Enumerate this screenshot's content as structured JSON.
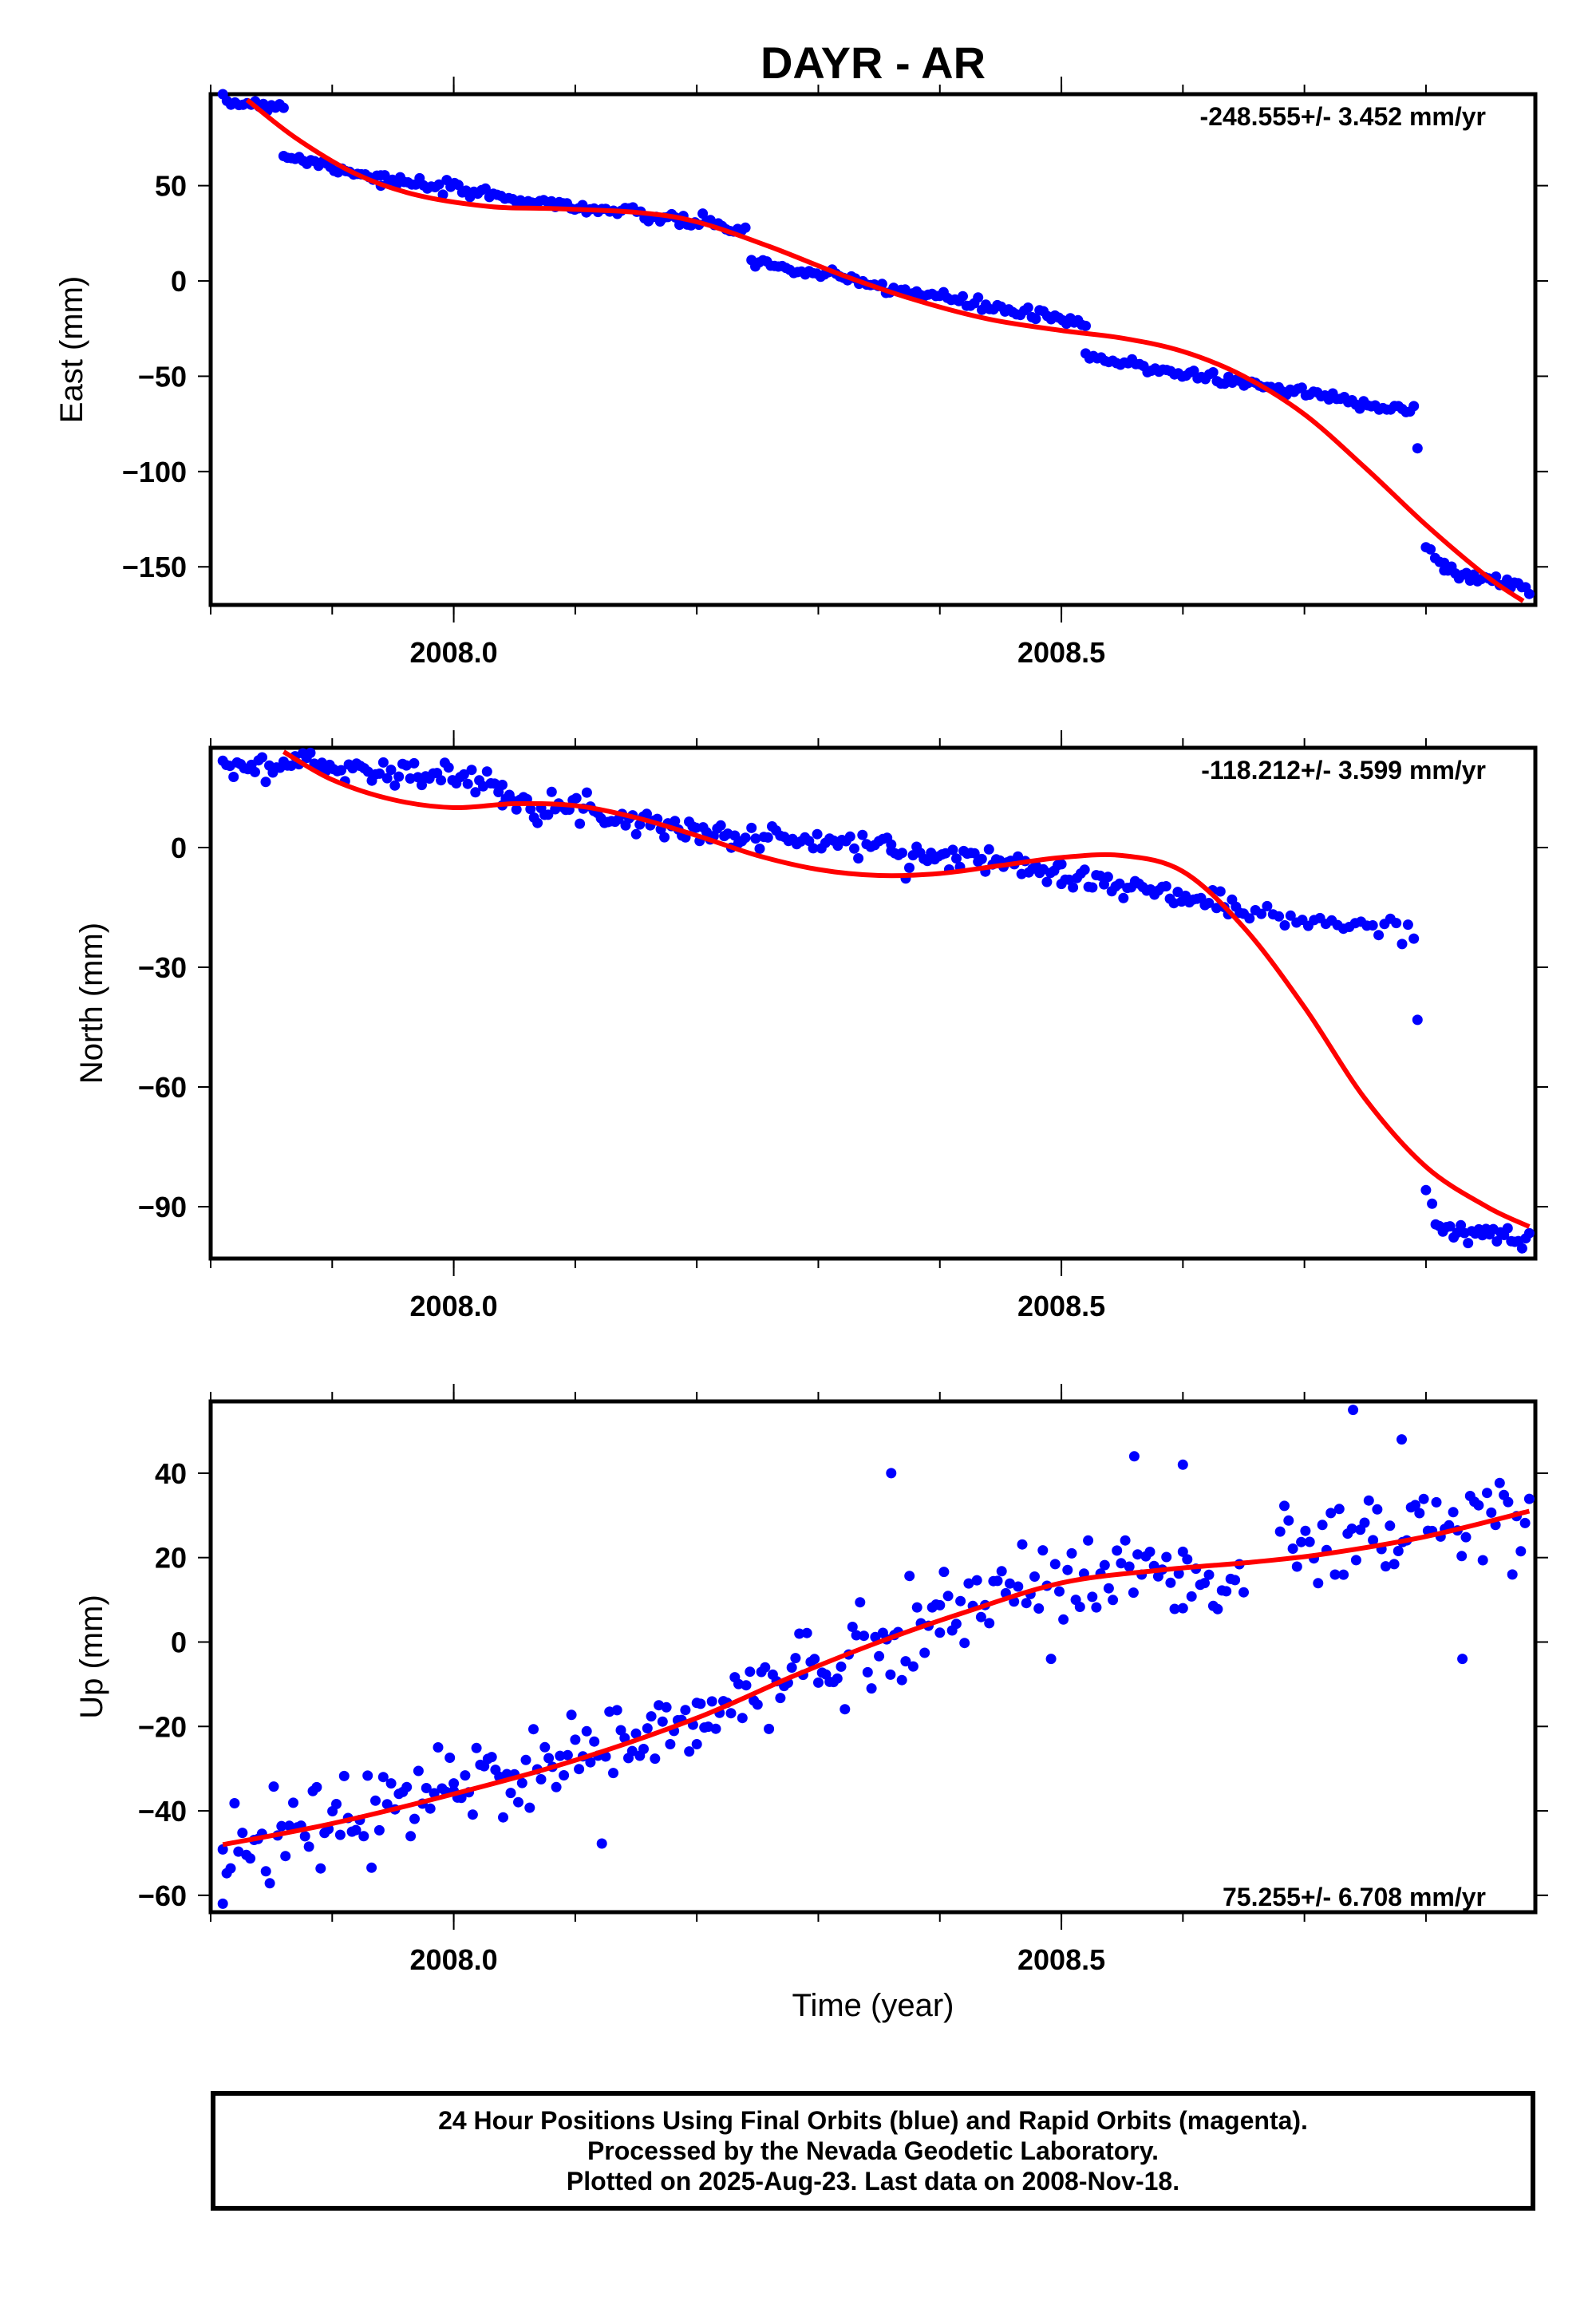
{
  "title": "DAYR - AR",
  "footer": {
    "line1": "24 Hour Positions Using Final Orbits (blue) and Rapid Orbits (magenta).",
    "line2": "Processed by the Nevada Geodetic Laboratory.",
    "line3": "Plotted on 2025-Aug-23. Last data on 2008-Nov-18."
  },
  "colors": {
    "final_orbits": "#0000ff",
    "fit": "#ff0000"
  },
  "chart_data": [
    {
      "type": "scatter",
      "id": "east",
      "title": "DAYR - AR",
      "xlabel": "",
      "ylabel": "East (mm)",
      "xlim": [
        2007.8,
        2008.89
      ],
      "ylim": [
        -170,
        98
      ],
      "xticks": [
        2008.0,
        2008.5
      ],
      "xtick_labels": [
        "2008.0",
        "2008.5"
      ],
      "yticks": [
        50,
        0,
        -50,
        -100,
        -150
      ],
      "ytick_labels": [
        "50",
        "0",
        "−50",
        "−100",
        "−150"
      ],
      "rate_text": "-248.555+/- 3.452 mm/yr",
      "rate_position": "top-right",
      "segments": [
        {
          "x0": 2007.81,
          "x1": 2007.86,
          "y0": 94,
          "y1": 92,
          "n": 16
        },
        {
          "x0": 2007.86,
          "x1": 2007.94,
          "y0": 66,
          "y1": 54,
          "n": 26
        },
        {
          "x0": 2007.94,
          "x1": 2008.24,
          "y0": 53,
          "y1": 27,
          "n": 95
        },
        {
          "x0": 2008.245,
          "x1": 2008.52,
          "y0": 10,
          "y1": -23,
          "n": 88
        },
        {
          "x0": 2008.52,
          "x1": 2008.79,
          "y0": -40,
          "y1": -68,
          "n": 86
        },
        {
          "x0": 2008.793,
          "x1": 2008.8,
          "y0": -88,
          "y1": -88,
          "n": 1
        },
        {
          "x0": 2008.8,
          "x1": 2008.815,
          "y0": -140,
          "y1": -150,
          "n": 5
        },
        {
          "x0": 2008.815,
          "x1": 2008.885,
          "y0": -152,
          "y1": -161,
          "n": 24
        }
      ],
      "scatter_noise": 1.6,
      "fit_curve": {
        "x": [
          2007.83,
          2007.87,
          2007.92,
          2007.97,
          2008.03,
          2008.08,
          2008.15,
          2008.2,
          2008.26,
          2008.32,
          2008.38,
          2008.44,
          2008.5,
          2008.55,
          2008.6,
          2008.65,
          2008.7,
          2008.75,
          2008.8,
          2008.85,
          2008.88
        ],
        "y": [
          95,
          75,
          56,
          45,
          39,
          38,
          36,
          31,
          18,
          3,
          -10,
          -20,
          -26,
          -30,
          -37,
          -50,
          -70,
          -98,
          -128,
          -155,
          -168
        ]
      }
    },
    {
      "type": "scatter",
      "id": "north",
      "xlabel": "",
      "ylabel": "North (mm)",
      "xlim": [
        2007.8,
        2008.89
      ],
      "ylim": [
        -103,
        25
      ],
      "xticks": [
        2008.0,
        2008.5
      ],
      "xtick_labels": [
        "2008.0",
        "2008.5"
      ],
      "yticks": [
        0,
        -30,
        -60,
        -90
      ],
      "ytick_labels": [
        "0",
        "−30",
        "−60",
        "−90"
      ],
      "rate_text": "-118.212+/- 3.599 mm/yr",
      "rate_position": "top-right",
      "segments": [
        {
          "x0": 2007.81,
          "x1": 2007.86,
          "y0": 20,
          "y1": 20,
          "n": 18
        },
        {
          "x0": 2007.86,
          "x1": 2008.04,
          "y0": 22,
          "y1": 16,
          "n": 58
        },
        {
          "x0": 2008.04,
          "x1": 2008.24,
          "y0": 13,
          "y1": 2,
          "n": 70
        },
        {
          "x0": 2008.245,
          "x1": 2008.36,
          "y0": 3,
          "y1": 0,
          "n": 35
        },
        {
          "x0": 2008.36,
          "x1": 2008.5,
          "y0": -1,
          "y1": -5,
          "n": 48
        },
        {
          "x0": 2008.5,
          "x1": 2008.65,
          "y0": -7,
          "y1": -15,
          "n": 48
        },
        {
          "x0": 2008.65,
          "x1": 2008.79,
          "y0": -17,
          "y1": -21,
          "n": 30
        },
        {
          "x0": 2008.793,
          "x1": 2008.8,
          "y0": -41,
          "y1": -41,
          "n": 1
        },
        {
          "x0": 2008.8,
          "x1": 2008.803,
          "y0": -86,
          "y1": -86,
          "n": 1
        },
        {
          "x0": 2008.805,
          "x1": 2008.885,
          "y0": -94,
          "y1": -99,
          "n": 28
        }
      ],
      "scatter_noise": 1.5,
      "fit_curve": {
        "x": [
          2007.86,
          2007.9,
          2007.95,
          2008.0,
          2008.05,
          2008.1,
          2008.15,
          2008.2,
          2008.25,
          2008.3,
          2008.35,
          2008.4,
          2008.45,
          2008.5,
          2008.55,
          2008.6,
          2008.65,
          2008.7,
          2008.75,
          2008.8,
          2008.85,
          2008.885
        ],
        "y": [
          24,
          17,
          12,
          10,
          11,
          10.5,
          7.5,
          3,
          -2,
          -5.5,
          -7,
          -6.5,
          -4.5,
          -2.5,
          -2,
          -6,
          -20,
          -40,
          -63,
          -80,
          -90,
          -95
        ]
      }
    },
    {
      "type": "scatter",
      "id": "up",
      "xlabel": "Time (year)",
      "ylabel": "Up (mm)",
      "xlim": [
        2007.8,
        2008.89
      ],
      "ylim": [
        -64,
        57
      ],
      "xticks": [
        2008.0,
        2008.5
      ],
      "xtick_labels": [
        "2008.0",
        "2008.5"
      ],
      "yticks": [
        40,
        20,
        0,
        -20,
        -40,
        -60
      ],
      "ytick_labels": [
        "40",
        "20",
        "0",
        "−20",
        "−40",
        "−60"
      ],
      "rate_text": "75.255+/- 6.708 mm/yr",
      "rate_position": "bottom-right",
      "segments": [
        {
          "x0": 2007.81,
          "x1": 2008.0,
          "y0": -50,
          "y1": -35,
          "n": 60
        },
        {
          "x0": 2008.0,
          "x1": 2008.2,
          "y0": -34,
          "y1": -20,
          "n": 65
        },
        {
          "x0": 2008.2,
          "x1": 2008.4,
          "y0": -18,
          "y1": 6,
          "n": 65
        },
        {
          "x0": 2008.4,
          "x1": 2008.6,
          "y0": 8,
          "y1": 20,
          "n": 60
        },
        {
          "x0": 2008.6,
          "x1": 2008.65,
          "y0": 15,
          "y1": 10,
          "n": 15
        },
        {
          "x0": 2008.68,
          "x1": 2008.885,
          "y0": 22,
          "y1": 30,
          "n": 60
        }
      ],
      "scatter_noise": 5.5,
      "outliers": [
        [
          2007.81,
          -62
        ],
        [
          2008.36,
          40
        ],
        [
          2008.74,
          55
        ],
        [
          2008.78,
          48
        ],
        [
          2008.83,
          -4
        ],
        [
          2008.56,
          44
        ],
        [
          2008.6,
          42
        ]
      ],
      "fit_curve": {
        "x": [
          2007.81,
          2007.9,
          2008.0,
          2008.1,
          2008.2,
          2008.28,
          2008.35,
          2008.42,
          2008.5,
          2008.58,
          2008.66,
          2008.72,
          2008.8,
          2008.885
        ],
        "y": [
          -48,
          -43,
          -36,
          -28,
          -18,
          -8,
          0,
          7,
          14,
          17,
          19,
          21,
          25,
          31
        ]
      }
    }
  ]
}
